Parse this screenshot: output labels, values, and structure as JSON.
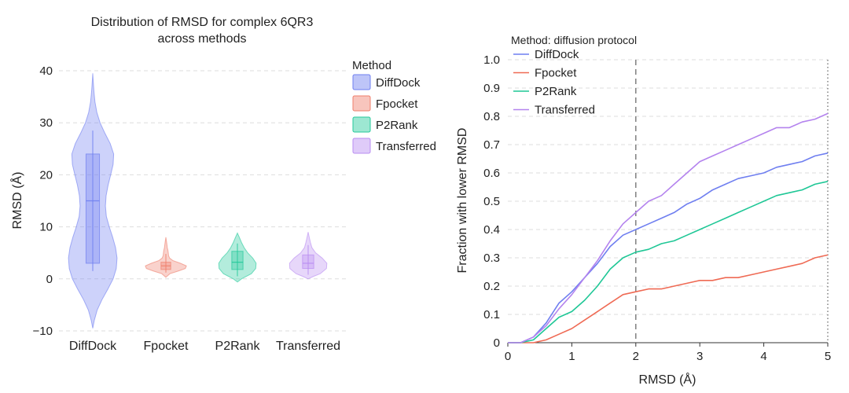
{
  "chart_data": [
    {
      "type": "violin",
      "title_line1": "Distribution of RMSD for complex 6QR3",
      "title_line2": "across methods",
      "ylabel": "RMSD (Å)",
      "xlabel": "",
      "ylim": [
        -10,
        40
      ],
      "yticks": [
        -10,
        0,
        10,
        20,
        30,
        40
      ],
      "grid": "horizontal dashed",
      "legend_title": "Method",
      "legend_position": "right",
      "categories": [
        "DiffDock",
        "Fpocket",
        "P2Rank",
        "Transferred"
      ],
      "colors": [
        "#6f7ff0",
        "#ef7f6c",
        "#25c99b",
        "#b98cf2"
      ],
      "violins": [
        {
          "name": "DiffDock",
          "kde_y": [
            -9.5,
            -8,
            -6,
            -4,
            -2,
            0,
            2,
            4,
            6,
            8,
            10,
            12,
            14,
            16,
            18,
            20,
            22,
            24,
            26,
            28,
            30,
            32,
            34,
            36,
            38,
            39.5
          ],
          "kde_w": [
            0,
            0.06,
            0.18,
            0.38,
            0.62,
            0.84,
            0.97,
            1.0,
            0.94,
            0.82,
            0.68,
            0.56,
            0.52,
            0.55,
            0.63,
            0.74,
            0.84,
            0.86,
            0.72,
            0.5,
            0.3,
            0.17,
            0.09,
            0.05,
            0.02,
            0
          ],
          "max_width": 0.65,
          "q1": 3,
          "median": 15,
          "q3": 24,
          "whisker_low": 1.5,
          "whisker_high": 28.5,
          "box_half": 0.09
        },
        {
          "name": "Fpocket",
          "kde_y": [
            0.3,
            1,
            1.5,
            2,
            2.5,
            3,
            3.5,
            4,
            4.5,
            5,
            5.5,
            6,
            7,
            8
          ],
          "kde_w": [
            0,
            0.2,
            0.6,
            0.95,
            1.0,
            0.7,
            0.35,
            0.18,
            0.13,
            0.12,
            0.1,
            0.07,
            0.04,
            0
          ],
          "max_width": 0.55,
          "q1": 1.8,
          "median": 2.5,
          "q3": 3.2,
          "whisker_low": 1.2,
          "whisker_high": 4.8,
          "box_half": 0.065
        },
        {
          "name": "P2Rank",
          "kde_y": [
            -0.6,
            0,
            1,
            2,
            3,
            4,
            5,
            6,
            7,
            8,
            8.8
          ],
          "kde_w": [
            0,
            0.22,
            0.75,
            0.98,
            1.0,
            0.82,
            0.55,
            0.36,
            0.22,
            0.1,
            0
          ],
          "max_width": 0.5,
          "q1": 1.8,
          "median": 3.2,
          "q3": 5.3,
          "whisker_low": 0.5,
          "whisker_high": 6.8,
          "box_half": 0.075
        },
        {
          "name": "Transferred",
          "kde_y": [
            0,
            0.5,
            1,
            2,
            3,
            4,
            5,
            6,
            7,
            8,
            9
          ],
          "kde_w": [
            0,
            0.3,
            0.65,
            0.98,
            1.0,
            0.75,
            0.4,
            0.2,
            0.12,
            0.06,
            0
          ],
          "max_width": 0.5,
          "q1": 2.0,
          "median": 3.0,
          "q3": 4.6,
          "whisker_low": 0.8,
          "whisker_high": 6.5,
          "box_half": 0.075
        }
      ]
    },
    {
      "type": "line",
      "title": "",
      "xlabel": "RMSD (Å)",
      "ylabel": "Fraction with lower RMSD",
      "xlim": [
        0,
        5
      ],
      "ylim": [
        0,
        1.0
      ],
      "xticks": [
        0,
        1,
        2,
        3,
        4,
        5
      ],
      "yticks": [
        0,
        0.1,
        0.2,
        0.3,
        0.4,
        0.5,
        0.6,
        0.7,
        0.8,
        0.9,
        1.0
      ],
      "ytick_labels": [
        "0",
        "0.1",
        "0.2",
        "0.3",
        "0.4",
        "0.5",
        "0.6",
        "0.7",
        "0.8",
        "0.9",
        "1.0"
      ],
      "grid": "horizontal dashed",
      "vlines": [
        {
          "x": 2,
          "style": "dashed"
        },
        {
          "x": 5,
          "style": "dotted"
        }
      ],
      "legend_title": "Method: diffusion protocol",
      "legend_position": "top-left",
      "series": [
        {
          "name": "DiffDock",
          "color": "#6f7ff0",
          "x": [
            0,
            0.2,
            0.4,
            0.6,
            0.8,
            1.0,
            1.2,
            1.4,
            1.6,
            1.8,
            2.0,
            2.2,
            2.4,
            2.6,
            2.8,
            3.0,
            3.2,
            3.4,
            3.6,
            3.8,
            4.0,
            4.2,
            4.4,
            4.6,
            4.8,
            5.0
          ],
          "y": [
            0,
            0,
            0.02,
            0.07,
            0.14,
            0.18,
            0.23,
            0.28,
            0.34,
            0.38,
            0.4,
            0.42,
            0.44,
            0.46,
            0.49,
            0.51,
            0.54,
            0.56,
            0.58,
            0.59,
            0.6,
            0.62,
            0.63,
            0.64,
            0.66,
            0.67
          ]
        },
        {
          "name": "Fpocket",
          "color": "#ef6a54",
          "x": [
            0,
            0.2,
            0.4,
            0.6,
            0.8,
            1.0,
            1.2,
            1.4,
            1.6,
            1.8,
            2.0,
            2.2,
            2.4,
            2.6,
            2.8,
            3.0,
            3.2,
            3.4,
            3.6,
            3.8,
            4.0,
            4.2,
            4.4,
            4.6,
            4.8,
            5.0
          ],
          "y": [
            0,
            0,
            0,
            0.01,
            0.03,
            0.05,
            0.08,
            0.11,
            0.14,
            0.17,
            0.18,
            0.19,
            0.19,
            0.2,
            0.21,
            0.22,
            0.22,
            0.23,
            0.23,
            0.24,
            0.25,
            0.26,
            0.27,
            0.28,
            0.3,
            0.31
          ]
        },
        {
          "name": "P2Rank",
          "color": "#1fc796",
          "x": [
            0,
            0.2,
            0.4,
            0.6,
            0.8,
            1.0,
            1.2,
            1.4,
            1.6,
            1.8,
            2.0,
            2.2,
            2.4,
            2.6,
            2.8,
            3.0,
            3.2,
            3.4,
            3.6,
            3.8,
            4.0,
            4.2,
            4.4,
            4.6,
            4.8,
            5.0
          ],
          "y": [
            0,
            0,
            0.01,
            0.05,
            0.09,
            0.11,
            0.15,
            0.2,
            0.26,
            0.3,
            0.32,
            0.33,
            0.35,
            0.36,
            0.38,
            0.4,
            0.42,
            0.44,
            0.46,
            0.48,
            0.5,
            0.52,
            0.53,
            0.54,
            0.56,
            0.57
          ]
        },
        {
          "name": "Transferred",
          "color": "#b483ee",
          "x": [
            0,
            0.2,
            0.4,
            0.6,
            0.8,
            1.0,
            1.2,
            1.4,
            1.6,
            1.8,
            2.0,
            2.2,
            2.4,
            2.6,
            2.8,
            3.0,
            3.2,
            3.4,
            3.6,
            3.8,
            4.0,
            4.2,
            4.4,
            4.6,
            4.8,
            5.0
          ],
          "y": [
            0,
            0,
            0.02,
            0.06,
            0.12,
            0.17,
            0.23,
            0.29,
            0.36,
            0.42,
            0.46,
            0.5,
            0.52,
            0.56,
            0.6,
            0.64,
            0.66,
            0.68,
            0.7,
            0.72,
            0.74,
            0.76,
            0.76,
            0.78,
            0.79,
            0.81
          ]
        }
      ]
    }
  ]
}
